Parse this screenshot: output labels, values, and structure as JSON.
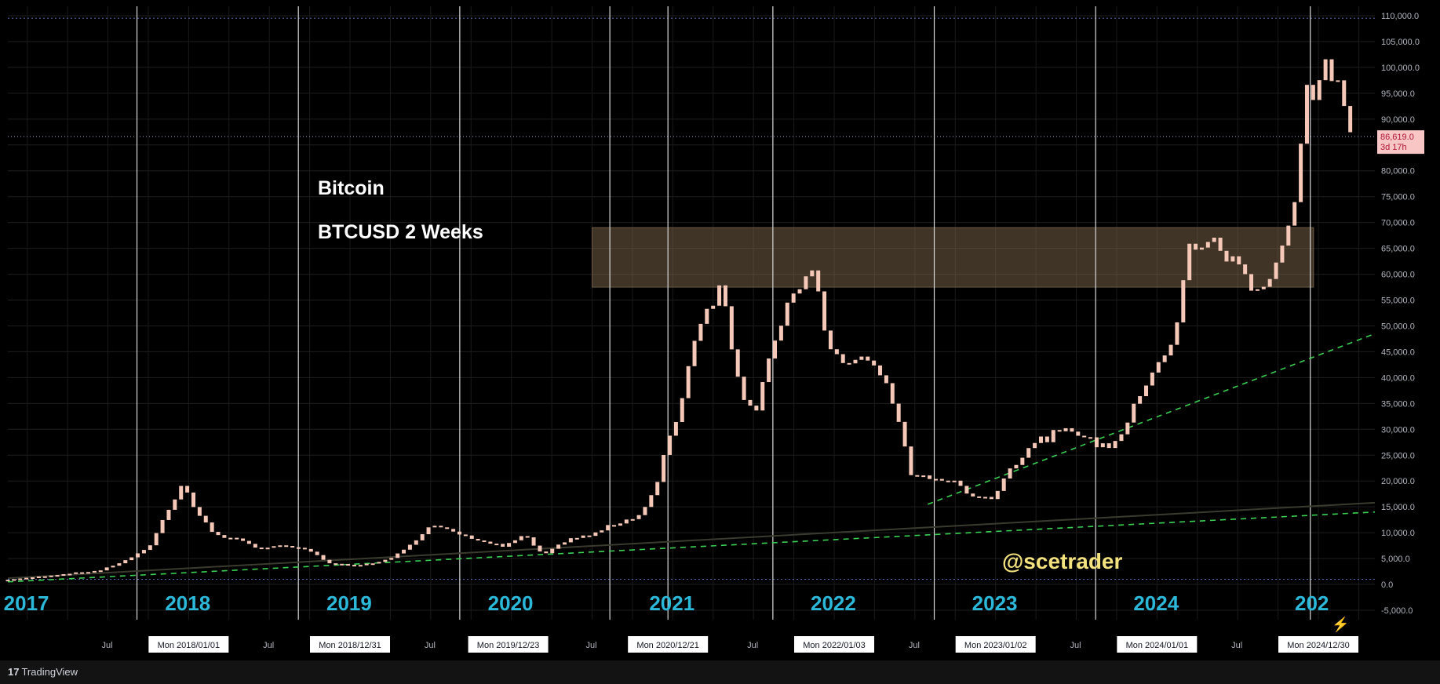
{
  "chart_data": {
    "type": "candlestick",
    "symbol_title": "Bitcoin",
    "symbol_subtitle": "BTCUSD 2 Weeks",
    "watermark": "@scetrader",
    "branding": "TradingView",
    "y_axis": {
      "min": -5000,
      "max": 110000,
      "step": 5000,
      "labels": [
        "110,000.0",
        "105,000.0",
        "100,000.0",
        "95,000.0",
        "90,000.0",
        "85,000.0",
        "80,000.0",
        "75,000.0",
        "70,000.0",
        "65,000.0",
        "60,000.0",
        "55,000.0",
        "50,000.0",
        "45,000.0",
        "40,000.0",
        "35,000.0",
        "30,000.0",
        "25,000.0",
        "20,000.0",
        "15,000.0",
        "10,000.0",
        "5,000.0",
        "0.0",
        "-5,000.0"
      ]
    },
    "x_axis": {
      "start": 2016.88,
      "end": 2025.35,
      "years": [
        {
          "label": "2017",
          "t": 2017.0
        },
        {
          "label": "2018",
          "t": 2018.0
        },
        {
          "label": "2019",
          "t": 2019.0
        },
        {
          "label": "2020",
          "t": 2020.0
        },
        {
          "label": "2021",
          "t": 2021.0
        },
        {
          "label": "2022",
          "t": 2022.0
        },
        {
          "label": "2023",
          "t": 2023.0
        },
        {
          "label": "2024",
          "t": 2024.0
        },
        {
          "label": "202",
          "t": 2025.0
        }
      ],
      "jul_ticks": [
        {
          "label": "Jul",
          "t": 2017.5
        },
        {
          "label": "Jul",
          "t": 2018.5
        },
        {
          "label": "Jul",
          "t": 2019.5
        },
        {
          "label": "Jul",
          "t": 2020.5
        },
        {
          "label": "Jul",
          "t": 2021.5
        },
        {
          "label": "Jul",
          "t": 2022.5
        },
        {
          "label": "Jul",
          "t": 2023.5
        },
        {
          "label": "Jul",
          "t": 2024.5
        }
      ],
      "date_boxes": [
        {
          "label": "Mon 2018/01/01",
          "t": 2018.0
        },
        {
          "label": "Mon 2018/12/31",
          "t": 2019.0
        },
        {
          "label": "Mon 2019/12/23",
          "t": 2019.98
        },
        {
          "label": "Mon 2020/12/21",
          "t": 2020.97
        },
        {
          "label": "Mon 2022/01/03",
          "t": 2022.0
        },
        {
          "label": "Mon 2023/01/02",
          "t": 2023.0
        },
        {
          "label": "Mon 2024/01/01",
          "t": 2024.0
        },
        {
          "label": "Mon 2024/12/30",
          "t": 2025.0
        }
      ],
      "cycle_lines": [
        2017.68,
        2018.68,
        2019.68,
        2020.61,
        2020.97,
        2021.62,
        2022.62,
        2023.62,
        2024.95
      ]
    },
    "last_price": {
      "label": "86,619.0",
      "value": 86619,
      "countdown": "3d 17h"
    },
    "top_dotted_line": 109500,
    "zero_dotted_line": 1000,
    "resistance_zone": {
      "from_t": 2020.5,
      "to_t": 2024.97,
      "low": 57500,
      "high": 69000
    },
    "trendlines": [
      {
        "name": "long-term-support",
        "points": [
          [
            2016.88,
            500
          ],
          [
            2025.35,
            14000
          ]
        ]
      },
      {
        "name": "steep-support",
        "points": [
          [
            2022.58,
            15500
          ],
          [
            2025.35,
            48500
          ]
        ]
      },
      {
        "name": "faint-ma",
        "points": [
          [
            2016.88,
            1200
          ],
          [
            2025.35,
            15800
          ]
        ]
      }
    ],
    "candles_keypoints": [
      [
        2016.88,
        900
      ],
      [
        2017.2,
        1900
      ],
      [
        2017.45,
        2700
      ],
      [
        2017.6,
        4500
      ],
      [
        2017.75,
        7000
      ],
      [
        2017.9,
        16000
      ],
      [
        2017.96,
        19500
      ],
      [
        2018.05,
        14000
      ],
      [
        2018.15,
        10000
      ],
      [
        2018.3,
        8500
      ],
      [
        2018.45,
        7000
      ],
      [
        2018.6,
        7500
      ],
      [
        2018.75,
        6500
      ],
      [
        2018.88,
        4000
      ],
      [
        2019.0,
        3700
      ],
      [
        2019.1,
        3900
      ],
      [
        2019.25,
        5000
      ],
      [
        2019.4,
        8500
      ],
      [
        2019.5,
        11500
      ],
      [
        2019.65,
        10000
      ],
      [
        2019.8,
        8500
      ],
      [
        2019.95,
        7300
      ],
      [
        2020.08,
        9500
      ],
      [
        2020.2,
        5500
      ],
      [
        2020.35,
        8800
      ],
      [
        2020.5,
        9500
      ],
      [
        2020.62,
        11500
      ],
      [
        2020.8,
        13500
      ],
      [
        2020.9,
        19000
      ],
      [
        2020.97,
        28000
      ],
      [
        2021.05,
        35000
      ],
      [
        2021.15,
        50000
      ],
      [
        2021.3,
        58000
      ],
      [
        2021.42,
        38000
      ],
      [
        2021.5,
        33000
      ],
      [
        2021.6,
        45000
      ],
      [
        2021.75,
        55000
      ],
      [
        2021.85,
        62000
      ],
      [
        2021.95,
        48000
      ],
      [
        2022.05,
        42000
      ],
      [
        2022.2,
        44000
      ],
      [
        2022.3,
        40000
      ],
      [
        2022.42,
        30000
      ],
      [
        2022.48,
        20000
      ],
      [
        2022.6,
        21000
      ],
      [
        2022.75,
        19500
      ],
      [
        2022.88,
        17000
      ],
      [
        2023.0,
        16800
      ],
      [
        2023.05,
        21000
      ],
      [
        2023.2,
        26500
      ],
      [
        2023.35,
        28500
      ],
      [
        2023.5,
        30000
      ],
      [
        2023.6,
        27500
      ],
      [
        2023.7,
        26500
      ],
      [
        2023.8,
        30000
      ],
      [
        2023.9,
        37000
      ],
      [
        2024.0,
        43000
      ],
      [
        2024.1,
        46000
      ],
      [
        2024.2,
        65000
      ],
      [
        2024.3,
        67000
      ],
      [
        2024.45,
        63000
      ],
      [
        2024.55,
        60000
      ],
      [
        2024.65,
        57000
      ],
      [
        2024.75,
        63000
      ],
      [
        2024.85,
        72000
      ],
      [
        2024.9,
        92000
      ],
      [
        2024.98,
        97000
      ],
      [
        2025.05,
        100000
      ],
      [
        2025.12,
        96000
      ],
      [
        2025.2,
        86619
      ]
    ]
  }
}
